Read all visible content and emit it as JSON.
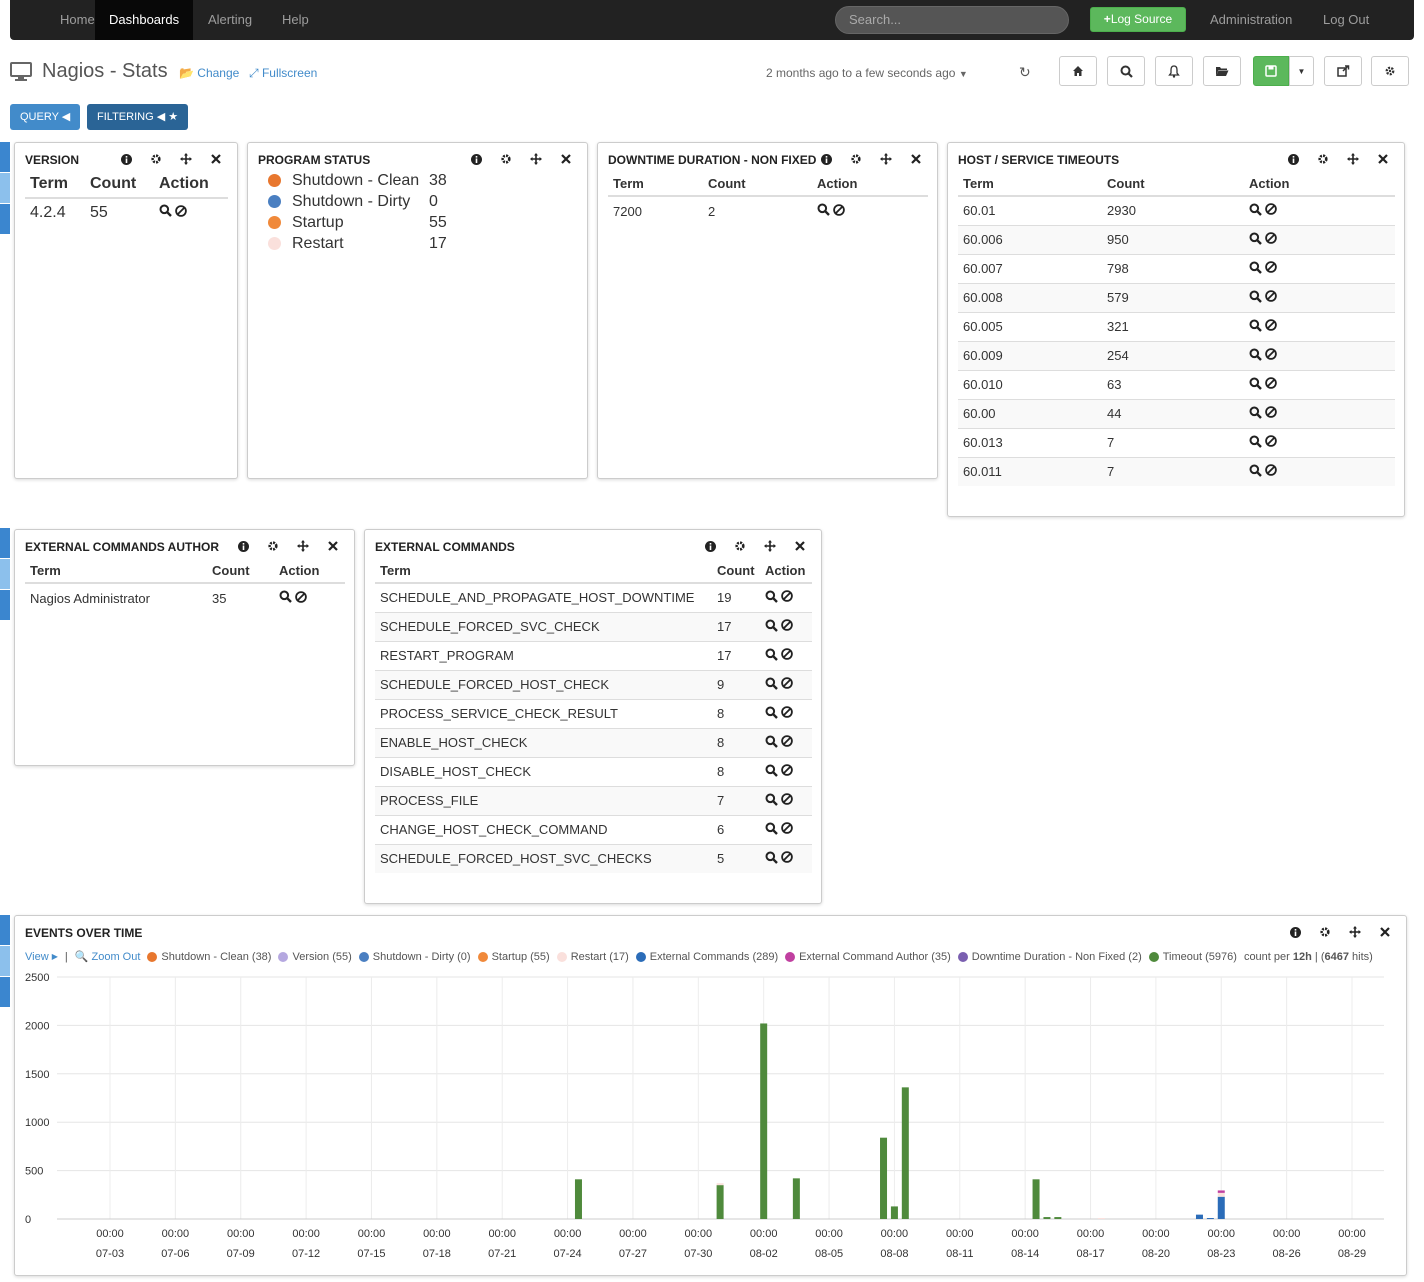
{
  "nav": {
    "home": "Home",
    "dashboards": "Dashboards",
    "alerting": "Alerting",
    "help": "Help",
    "search_placeholder": "Search...",
    "log_source": "Log Source",
    "administration": "Administration",
    "logout": "Log Out"
  },
  "header": {
    "title": "Nagios - Stats",
    "change": "Change",
    "fullscreen": "Fullscreen",
    "timerange": "2 months ago to a few seconds ago"
  },
  "query_button": "QUERY",
  "filtering_button": "FILTERING",
  "colors": {
    "accent": "#428bca",
    "green": "#5cb85c",
    "timeout": "#4f8a3c",
    "external_commands": "#2b6cb8",
    "shutdown_clean": "#e8772e",
    "shutdown_dirty": "#4a7fc1",
    "startup": "#f0893a",
    "restart": "#fae0dc"
  },
  "version_panel": {
    "title": "VERSION",
    "columns": [
      "Term",
      "Count",
      "Action"
    ],
    "rows": [
      [
        "4.2.4",
        "55"
      ]
    ]
  },
  "program_status_panel": {
    "title": "PROGRAM STATUS",
    "items": [
      {
        "label": "Shutdown - Clean",
        "value": "38",
        "color": "#e8772e"
      },
      {
        "label": "Shutdown - Dirty",
        "value": "0",
        "color": "#4a7fc1"
      },
      {
        "label": "Startup",
        "value": "55",
        "color": "#f0893a"
      },
      {
        "label": "Restart",
        "value": "17",
        "color": "#fae0dc"
      }
    ]
  },
  "downtime_panel": {
    "title": "DOWNTIME DURATION - NON FIXED",
    "columns": [
      "Term",
      "Count",
      "Action"
    ],
    "rows": [
      [
        "7200",
        "2"
      ]
    ]
  },
  "timeouts_panel": {
    "title": "HOST / SERVICE TIMEOUTS",
    "columns": [
      "Term",
      "Count",
      "Action"
    ],
    "rows": [
      [
        "60.01",
        "2930"
      ],
      [
        "60.006",
        "950"
      ],
      [
        "60.007",
        "798"
      ],
      [
        "60.008",
        "579"
      ],
      [
        "60.005",
        "321"
      ],
      [
        "60.009",
        "254"
      ],
      [
        "60.010",
        "63"
      ],
      [
        "60.00",
        "44"
      ],
      [
        "60.013",
        "7"
      ],
      [
        "60.011",
        "7"
      ]
    ]
  },
  "ext_author_panel": {
    "title": "EXTERNAL COMMANDS AUTHOR",
    "columns": [
      "Term",
      "Count",
      "Action"
    ],
    "rows": [
      [
        "Nagios Administrator",
        "35"
      ]
    ]
  },
  "ext_commands_panel": {
    "title": "EXTERNAL COMMANDS",
    "columns": [
      "Term",
      "Count",
      "Action"
    ],
    "rows": [
      [
        "SCHEDULE_AND_PROPAGATE_HOST_DOWNTIME",
        "19"
      ],
      [
        "SCHEDULE_FORCED_SVC_CHECK",
        "17"
      ],
      [
        "RESTART_PROGRAM",
        "17"
      ],
      [
        "SCHEDULE_FORCED_HOST_CHECK",
        "9"
      ],
      [
        "PROCESS_SERVICE_CHECK_RESULT",
        "8"
      ],
      [
        "ENABLE_HOST_CHECK",
        "8"
      ],
      [
        "DISABLE_HOST_CHECK",
        "8"
      ],
      [
        "PROCESS_FILE",
        "7"
      ],
      [
        "CHANGE_HOST_CHECK_COMMAND",
        "6"
      ],
      [
        "SCHEDULE_FORCED_HOST_SVC_CHECKS",
        "5"
      ]
    ]
  },
  "events_panel": {
    "title": "EVENTS OVER TIME",
    "view": "View",
    "zoom_out": "Zoom Out",
    "legend": [
      {
        "label": "Shutdown - Clean (38)",
        "color": "#e8772e"
      },
      {
        "label": "Version (55)",
        "color": "#b5a8e0"
      },
      {
        "label": "Shutdown - Dirty (0)",
        "color": "#4a7fc1"
      },
      {
        "label": "Startup (55)",
        "color": "#f0893a"
      },
      {
        "label": "Restart (17)",
        "color": "#fae0dc"
      },
      {
        "label": "External Commands (289)",
        "color": "#2b6cb8"
      },
      {
        "label": "External Command Author (35)",
        "color": "#c040a0"
      },
      {
        "label": "Downtime Duration - Non Fixed (2)",
        "color": "#7a5fb0"
      },
      {
        "label": "Timeout (5976)",
        "color": "#4f8a3c"
      }
    ],
    "count_per_prefix": "count per ",
    "interval": "12h",
    "hits_prefix": " (",
    "hits": "6467",
    "hits_suffix": " hits)"
  },
  "chart_data": {
    "type": "bar",
    "ylim": [
      0,
      2500
    ],
    "yticks": [
      "0",
      "500",
      "1000",
      "1500",
      "2000",
      "2500"
    ],
    "xtick_time": "00:00",
    "xticks": [
      "07-03",
      "07-06",
      "07-09",
      "07-12",
      "07-15",
      "07-18",
      "07-21",
      "07-24",
      "07-27",
      "07-30",
      "08-02",
      "08-05",
      "08-08",
      "08-11",
      "08-14",
      "08-17",
      "08-20",
      "08-23",
      "08-26",
      "08-29"
    ],
    "series": [
      {
        "name": "Timeout",
        "color": "#4f8a3c",
        "points": [
          [
            "07-24 12:00",
            410
          ],
          [
            "07-31 00:00",
            350
          ],
          [
            "08-02 00:00",
            2020
          ],
          [
            "08-03 12:00",
            420
          ],
          [
            "08-07 12:00",
            840
          ],
          [
            "08-08 00:00",
            130
          ],
          [
            "08-08 12:00",
            1360
          ],
          [
            "08-14 12:00",
            410
          ],
          [
            "08-15 00:00",
            20
          ],
          [
            "08-15 12:00",
            20
          ]
        ]
      },
      {
        "name": "External Commands",
        "color": "#2b6cb8",
        "points": [
          [
            "08-22 00:00",
            45
          ],
          [
            "08-22 12:00",
            10
          ],
          [
            "08-23 00:00",
            230
          ]
        ]
      },
      {
        "name": "Restart",
        "color": "#fae0dc",
        "points": [
          [
            "07-31 00:00",
            20
          ],
          [
            "08-23 00:00",
            40
          ],
          [
            "08-17 12:00",
            10
          ]
        ]
      },
      {
        "name": "External Command Author",
        "color": "#c040a0",
        "points": [
          [
            "08-23 00:00",
            25
          ]
        ]
      }
    ]
  }
}
